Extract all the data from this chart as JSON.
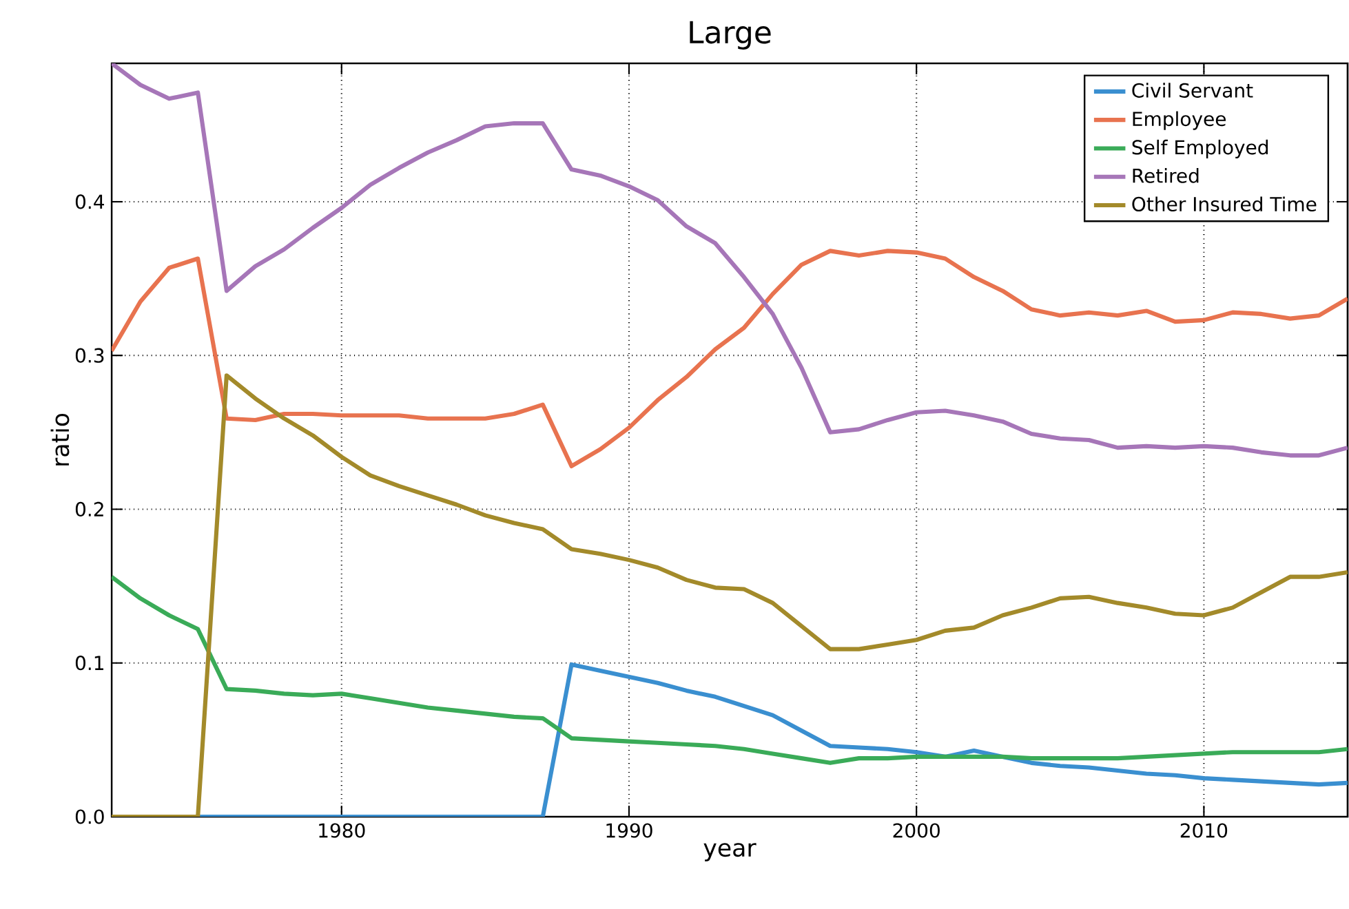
{
  "chart_data": {
    "type": "line",
    "title": "Large",
    "xlabel": "year",
    "ylabel": "ratio",
    "x": [
      1972,
      1973,
      1974,
      1975,
      1976,
      1977,
      1978,
      1979,
      1980,
      1981,
      1982,
      1983,
      1984,
      1985,
      1986,
      1987,
      1988,
      1989,
      1990,
      1991,
      1992,
      1993,
      1994,
      1995,
      1996,
      1997,
      1998,
      1999,
      2000,
      2001,
      2002,
      2003,
      2004,
      2005,
      2006,
      2007,
      2008,
      2009,
      2010,
      2011,
      2012,
      2013,
      2014,
      2015
    ],
    "series": [
      {
        "name": "Civil Servant",
        "color": "#3a8fd0",
        "values": [
          null,
          null,
          null,
          0,
          0,
          0,
          0,
          0,
          0,
          0,
          0,
          0,
          0,
          0,
          0,
          0,
          0.099,
          0.095,
          0.091,
          0.087,
          0.082,
          0.078,
          0.072,
          0.066,
          0.056,
          0.046,
          0.045,
          0.044,
          0.042,
          0.039,
          0.043,
          0.039,
          0.035,
          0.033,
          0.032,
          0.03,
          0.028,
          0.027,
          0.025,
          0.024,
          0.023,
          0.022,
          0.021,
          0.022
        ]
      },
      {
        "name": "Employee",
        "color": "#e8734f",
        "values": [
          0.303,
          0.335,
          0.357,
          0.363,
          0.259,
          0.258,
          0.262,
          0.262,
          0.261,
          0.261,
          0.261,
          0.259,
          0.259,
          0.259,
          0.262,
          0.268,
          0.228,
          0.239,
          0.253,
          0.271,
          0.286,
          0.304,
          0.318,
          0.34,
          0.359,
          0.368,
          0.365,
          0.368,
          0.367,
          0.363,
          0.351,
          0.342,
          0.33,
          0.326,
          0.328,
          0.326,
          0.329,
          0.322,
          0.323,
          0.328,
          0.327,
          0.324,
          0.326,
          0.337
        ]
      },
      {
        "name": "Self Employed",
        "color": "#3aab58",
        "values": [
          0.156,
          0.142,
          0.131,
          0.122,
          0.083,
          0.082,
          0.08,
          0.079,
          0.08,
          0.077,
          0.074,
          0.071,
          0.069,
          0.067,
          0.065,
          0.064,
          0.051,
          0.05,
          0.049,
          0.048,
          0.047,
          0.046,
          0.044,
          0.041,
          0.038,
          0.035,
          0.038,
          0.038,
          0.039,
          0.039,
          0.039,
          0.039,
          0.038,
          0.038,
          0.038,
          0.038,
          0.039,
          0.04,
          0.041,
          0.042,
          0.042,
          0.042,
          0.042,
          0.044
        ]
      },
      {
        "name": "Retired",
        "color": "#a676b8",
        "values": [
          0.49,
          0.476,
          0.467,
          0.471,
          0.342,
          0.358,
          0.369,
          0.383,
          0.396,
          0.411,
          0.422,
          0.432,
          0.44,
          0.449,
          0.451,
          0.451,
          0.421,
          0.417,
          0.41,
          0.401,
          0.384,
          0.373,
          0.351,
          0.327,
          0.292,
          0.25,
          0.252,
          0.258,
          0.263,
          0.264,
          0.261,
          0.257,
          0.249,
          0.246,
          0.245,
          0.24,
          0.241,
          0.24,
          0.241,
          0.24,
          0.237,
          0.235,
          0.235,
          0.24
        ]
      },
      {
        "name": "Other Insured Time",
        "color": "#a38a2a",
        "values": [
          0,
          0,
          0,
          0,
          0.287,
          0.272,
          0.259,
          0.248,
          0.234,
          0.222,
          0.215,
          0.209,
          0.203,
          0.196,
          0.191,
          0.187,
          0.174,
          0.171,
          0.167,
          0.162,
          0.154,
          0.149,
          0.148,
          0.139,
          0.124,
          0.109,
          0.109,
          0.112,
          0.115,
          0.121,
          0.123,
          0.131,
          0.136,
          0.142,
          0.143,
          0.139,
          0.136,
          0.132,
          0.131,
          0.136,
          0.146,
          0.156,
          0.156,
          0.159
        ]
      }
    ],
    "xlim": [
      1972,
      2015
    ],
    "ylim": [
      0,
      0.49
    ],
    "xticks": [
      1980,
      1990,
      2000,
      2010
    ],
    "yticks": [
      {
        "value": 0,
        "label": "0.0"
      },
      0.1,
      0.2,
      0.3,
      0.4
    ],
    "grid": true,
    "legend": "top right",
    "marker": "none",
    "line_style": "solid"
  }
}
